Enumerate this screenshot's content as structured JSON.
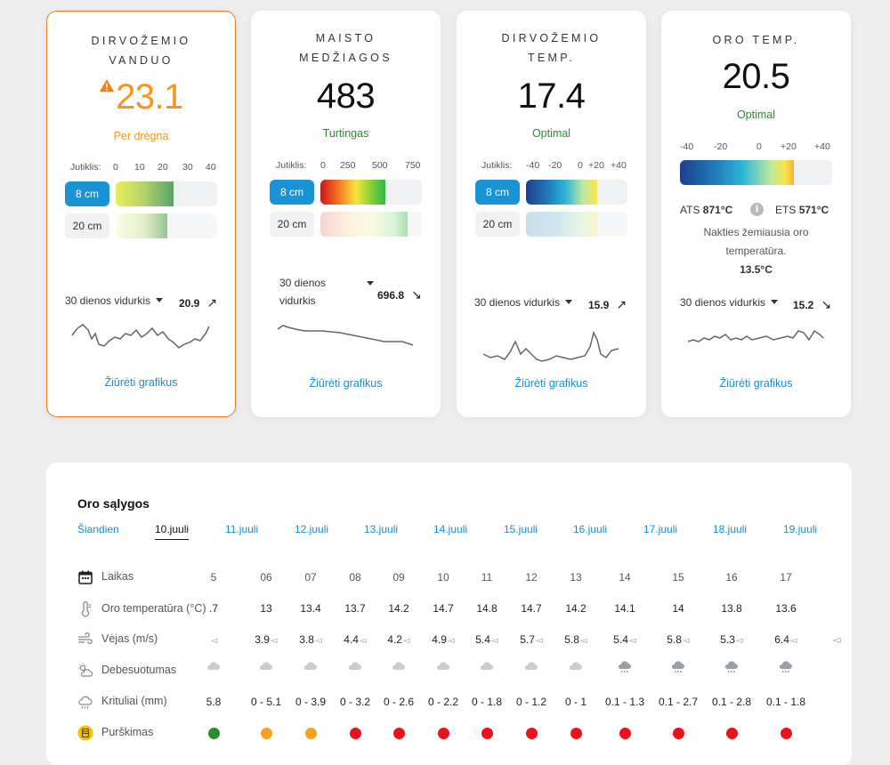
{
  "cards": [
    {
      "title": "DIRVOŽEMIO VANDUO",
      "value": "23.1",
      "status": "Per drėgna",
      "scale_label": "Jutiklis:",
      "scale_ticks": [
        "0",
        "10",
        "20",
        "30",
        "40"
      ],
      "depth_8": "8 cm",
      "depth_20": "20 cm",
      "fill_8_fraction": 0.57,
      "fill_20_fraction": 0.51,
      "avg_label": "30 dienos vidurkis",
      "avg_value": "20.9",
      "trend": "↗",
      "link": "Žiūrėti grafikus",
      "warning_icon": "warning-triangle-icon"
    },
    {
      "title": "MAISTO MEDŽIAGOS",
      "value": "483",
      "status": "Turtingas",
      "scale_label": "Jutiklis:",
      "scale_ticks": [
        "0",
        "250",
        "500",
        "750"
      ],
      "depth_8": "8 cm",
      "depth_20": "20 cm",
      "fill_8_fraction": 0.64,
      "fill_20_fraction": 0.86,
      "avg_label": "30 dienos vidurkis",
      "avg_value": "696.8",
      "trend": "↘",
      "link": "Žiūrėti grafikus"
    },
    {
      "title": "DIRVOŽEMIO TEMP.",
      "value": "17.4",
      "status": "Optimal",
      "scale_label": "Jutiklis:",
      "scale_ticks": [
        "-40",
        "-20",
        "0",
        "+20",
        "+40"
      ],
      "depth_8": "8 cm",
      "depth_20": "20 cm",
      "fill_8_fraction": 0.7,
      "fill_20_fraction": 0.7,
      "avg_label": "30 dienos vidurkis",
      "avg_value": "15.9",
      "trend": "↗",
      "link": "Žiūrėti grafikus"
    },
    {
      "title": "ORO TEMP.",
      "value": "20.5",
      "status": "Optimal",
      "scale_ticks": [
        "-40",
        "-20",
        "0",
        "+20",
        "+40"
      ],
      "fill_fraction": 0.75,
      "ats_label": "ATS",
      "ats_value": "871°C",
      "ets_label": "ETS",
      "ets_value": "571°C",
      "night_text": "Nakties žemiausia oro temperatūra.",
      "night_value": "13.5°C",
      "avg_label": "30 dienos vidurkis",
      "avg_value": "15.2",
      "trend": "↘",
      "link": "Žiūrėti grafikus"
    }
  ],
  "weather": {
    "title": "Oro sąlygos",
    "days": [
      "Šiandien",
      "10.juuli",
      "11.juuli",
      "12.juuli",
      "13.juuli",
      "14.juuli",
      "15.juuli",
      "16.juuli",
      "17.juuli",
      "18.juuli",
      "19.juuli"
    ],
    "active_day": 1,
    "rows": {
      "time": "Laikas",
      "temp": "Oro temperatūra (°C)",
      "wind": "Vėjas (m/s)",
      "cloud": "Debesuotumas",
      "rain": "Krituliai (mm)",
      "spray": "Purškimas"
    },
    "hours": [
      "5",
      "06",
      "07",
      "08",
      "09",
      "10",
      "11",
      "12",
      "13",
      "14",
      "15",
      "16",
      "17"
    ],
    "temps": [
      ".7",
      "13",
      "13.4",
      "13.7",
      "14.2",
      "14.7",
      "14.8",
      "14.7",
      "14.2",
      "14.1",
      "14",
      "13.8",
      "13.6"
    ],
    "winds": [
      "",
      "3.9",
      "3.8",
      "4.4",
      "4.2",
      "4.9",
      "5.4",
      "5.7",
      "5.8",
      "5.4",
      "5.8",
      "5.3",
      "6.4"
    ],
    "clouds": [
      "cloud",
      "cloud",
      "cloud",
      "cloud",
      "cloud",
      "cloud",
      "cloud",
      "cloud",
      "cloud",
      "rain-cloud",
      "rain-cloud",
      "rain-cloud",
      "rain-cloud"
    ],
    "rains": [
      "5.8",
      "0 - 5.1",
      "0 - 3.9",
      "0 - 3.2",
      "0 - 2.6",
      "0 - 2.2",
      "0 - 1.8",
      "0 - 1.2",
      "0 - 1",
      "0.1 - 1.3",
      "0.1 - 2.7",
      "0.1 - 2.8",
      "0.1 - 1.8"
    ],
    "spray": [
      "green",
      "orange",
      "orange",
      "red",
      "red",
      "red",
      "red",
      "red",
      "red",
      "red",
      "red",
      "red",
      "red"
    ],
    "colors": {
      "green": "#2e8b2e",
      "orange": "#f7a21b",
      "red": "#e8141b"
    }
  }
}
